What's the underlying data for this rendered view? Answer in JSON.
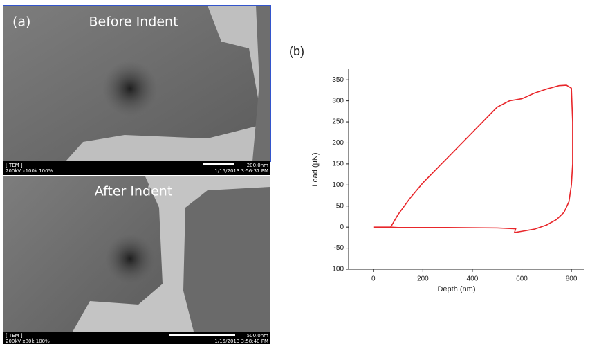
{
  "panel_a": {
    "label": "(a)",
    "top_image": {
      "caption": "Before Indent",
      "mode": "[ TEM ]",
      "settings": "200kV x100k 100%",
      "scale": "200.0nm",
      "timestamp": "1/15/2013 3:56:37 PM"
    },
    "bottom_image": {
      "caption": "After Indent",
      "mode": "[ TEM ]",
      "settings": "200kV x80k 100%",
      "scale": "500.0nm",
      "timestamp": "1/15/2013 3:58:40 PM"
    }
  },
  "panel_b": {
    "label": "(b)"
  },
  "chart_data": {
    "type": "line",
    "x_label": "Depth (nm)",
    "y_label": "Load (µN)",
    "series": [
      {
        "color": "#e8262a",
        "x": [
          0,
          70,
          100,
          150,
          200,
          300,
          400,
          500,
          550,
          600,
          650,
          700,
          750,
          780,
          800,
          805,
          805,
          800,
          790,
          770,
          740,
          700,
          650,
          600,
          570,
          575,
          500,
          300,
          100,
          70
        ],
        "values": [
          0,
          0,
          30,
          70,
          105,
          165,
          225,
          285,
          300,
          305,
          318,
          328,
          336,
          337,
          330,
          250,
          150,
          100,
          60,
          35,
          18,
          5,
          -5,
          -10,
          -13,
          -4,
          -2,
          -1,
          -1,
          0
        ]
      }
    ],
    "xlim": [
      -100,
      850
    ],
    "ylim": [
      -100,
      375
    ],
    "xticks": [
      0,
      200,
      400,
      600,
      800
    ],
    "yticks": [
      -100,
      -50,
      0,
      50,
      100,
      150,
      200,
      250,
      300,
      350
    ]
  }
}
